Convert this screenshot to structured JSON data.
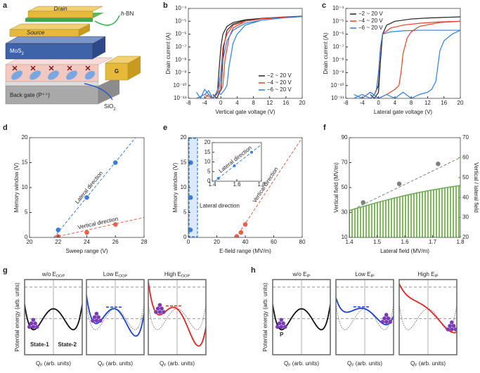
{
  "device": {
    "label": "a",
    "drain": "Drain",
    "hbn": {
      "italic": "h",
      "text": "-BN"
    },
    "source": "Source",
    "channel": {
      "text": "MoS",
      "sub": "2"
    },
    "gate": "G",
    "back_gate": "Back gate (P⁺⁺)",
    "dielectric": {
      "text": "SiO",
      "sub": "2"
    }
  },
  "chart_data": [
    {
      "type": "line",
      "label": "b",
      "log_y": true,
      "x_label": "Vertical gate voltage (V)",
      "y_label": "Drain current (A)",
      "xlim": [
        -8,
        20
      ],
      "xticks": [
        -8,
        -4,
        0,
        4,
        8,
        12,
        16,
        20
      ],
      "ylim": [
        1e-11,
        0.0001
      ],
      "yticks": [
        {
          "value": 1e-11,
          "label": "10⁻¹¹"
        },
        {
          "value": 1e-10,
          "label": "10⁻¹⁰"
        },
        {
          "value": 1e-09,
          "label": "10⁻⁹"
        },
        {
          "value": 1e-08,
          "label": "10⁻⁸"
        },
        {
          "value": 1e-07,
          "label": "10⁻⁷"
        },
        {
          "value": 1e-06,
          "label": "10⁻⁶"
        },
        {
          "value": 1e-05,
          "label": "10⁻⁵"
        },
        {
          "value": 0.0001,
          "label": "10⁻⁴"
        }
      ],
      "legend": "lower right",
      "series": [
        {
          "name": "−2 ~ 20 V",
          "color": "#222222",
          "x": [
            -2,
            -1,
            -0.3,
            0,
            0.3,
            0.7,
            1.5,
            3,
            6,
            10,
            15,
            20,
            15,
            10,
            6,
            3,
            1.5,
            0.5,
            0,
            -0.5,
            -0.8,
            -1.2,
            -2
          ],
          "values": [
            2e-11,
            1e-11,
            3e-11,
            5e-11,
            1e-09,
            1e-07,
            2e-06,
            6e-06,
            1.2e-05,
            1.7e-05,
            2.1e-05,
            2.5e-05,
            2.1e-05,
            1.7e-05,
            1.3e-05,
            8e-06,
            4e-06,
            1e-06,
            1e-07,
            1e-09,
            5e-11,
            2e-11,
            1e-11
          ]
        },
        {
          "name": "−4 ~ 20 V",
          "color": "#e8402f",
          "x": [
            -4,
            -3,
            -2,
            -1,
            0,
            0.5,
            1,
            2,
            3,
            6,
            10,
            15,
            20,
            15,
            10,
            6,
            3,
            1.5,
            0.5,
            0,
            -0.5,
            -1,
            -2,
            -4
          ],
          "values": [
            1e-11,
            2e-11,
            1e-11,
            3e-11,
            4e-11,
            1e-10,
            1e-08,
            5e-07,
            3e-06,
            1e-05,
            1.6e-05,
            2e-05,
            2.4e-05,
            2e-05,
            1.5e-05,
            1e-05,
            5e-06,
            1e-06,
            1e-07,
            1e-09,
            4e-11,
            2e-11,
            1e-11,
            2e-11
          ]
        },
        {
          "name": "−6 ~ 20 V",
          "color": "#2f7fe0",
          "x": [
            -6,
            -5,
            -4,
            -3,
            -2,
            -1,
            0,
            1,
            1.5,
            2,
            3,
            4,
            6,
            10,
            15,
            20,
            15,
            10,
            6,
            3,
            1.5,
            0.5,
            -0.5,
            -1,
            -2,
            -3,
            -4,
            -6
          ],
          "values": [
            3e-11,
            1e-11,
            5e-11,
            2e-11,
            1e-11,
            3e-11,
            2e-11,
            5e-11,
            1e-10,
            3e-09,
            2e-07,
            1e-06,
            5e-06,
            1.2e-05,
            1.8e-05,
            2.3e-05,
            1.8e-05,
            1.2e-05,
            7e-06,
            2e-06,
            3e-07,
            1e-08,
            1e-10,
            3e-11,
            1e-11,
            4e-11,
            2e-11,
            1e-11
          ]
        }
      ]
    },
    {
      "type": "line",
      "label": "c",
      "log_y": true,
      "x_label": "Lateral gate voltage (V)",
      "y_label": "Drain current (A)",
      "xlim": [
        -8,
        20
      ],
      "xticks": [
        -8,
        -4,
        0,
        4,
        8,
        12,
        16,
        20
      ],
      "ylim": [
        1e-11,
        0.0001
      ],
      "yticks": [
        {
          "value": 1e-11,
          "label": "10⁻¹¹"
        },
        {
          "value": 1e-10,
          "label": "10⁻¹⁰"
        },
        {
          "value": 1e-09,
          "label": "10⁻⁹"
        },
        {
          "value": 1e-08,
          "label": "10⁻⁸"
        },
        {
          "value": 1e-07,
          "label": "10⁻⁷"
        },
        {
          "value": 1e-06,
          "label": "10⁻⁶"
        },
        {
          "value": 1e-05,
          "label": "10⁻⁵"
        },
        {
          "value": 0.0001,
          "label": "10⁻⁴"
        }
      ],
      "legend": "upper left",
      "series": [
        {
          "name": "−2 ~ 20 V",
          "color": "#222222",
          "x": [
            -2,
            -1,
            0,
            0.5,
            1,
            2,
            4,
            8,
            12,
            16,
            20,
            16,
            12,
            8,
            4,
            2,
            1,
            0.5,
            0,
            -1,
            -2
          ],
          "values": [
            2e-11,
            1e-11,
            3e-11,
            1e-08,
            1e-06,
            5e-06,
            1e-05,
            1.5e-05,
            1.8e-05,
            2e-05,
            2.2e-05,
            2e-05,
            1.8e-05,
            1.5e-05,
            1e-05,
            5e-06,
            1e-06,
            1e-08,
            1e-10,
            2e-11,
            1e-11
          ]
        },
        {
          "name": "−4 ~ 20 V",
          "color": "#e8402f",
          "x": [
            -4,
            -2,
            0,
            2,
            4,
            5,
            5.5,
            6,
            7,
            8,
            10,
            15,
            20,
            15,
            10,
            6,
            3,
            1,
            0.5,
            0,
            -0.5,
            -1,
            -2,
            -4
          ],
          "values": [
            1e-11,
            3e-11,
            1e-11,
            2e-11,
            5e-11,
            1e-10,
            1e-09,
            3e-08,
            5e-07,
            1.5e-06,
            4e-06,
            8e-06,
            1e-05,
            9e-06,
            7e-06,
            5e-06,
            3e-06,
            1e-06,
            1e-07,
            1e-09,
            5e-11,
            2e-11,
            1e-11,
            2e-11
          ]
        },
        {
          "name": "−6 ~ 20 V",
          "color": "#2f7fe0",
          "x": [
            -6,
            -4,
            -2,
            0,
            2,
            4,
            6,
            8,
            10,
            12,
            13,
            14,
            14.5,
            15,
            16,
            18,
            20,
            15,
            10,
            6,
            3,
            1,
            0.5,
            0,
            -0.5,
            -1,
            -2,
            -4,
            -6
          ],
          "values": [
            2e-11,
            1e-11,
            3e-11,
            1e-11,
            2e-11,
            1e-11,
            3e-11,
            1e-11,
            2e-11,
            3e-11,
            5e-11,
            2e-10,
            3e-09,
            5e-08,
            3e-07,
            1e-06,
            2e-06,
            2e-06,
            2e-06,
            1.8e-06,
            1.5e-06,
            1e-06,
            1e-07,
            1e-09,
            4e-11,
            2e-11,
            1e-11,
            2e-11,
            1e-11
          ]
        }
      ]
    },
    {
      "type": "scatter",
      "label": "d",
      "x_label": "Sweep range (V)",
      "y_label": "Memory window (V)",
      "xlim": [
        20,
        28
      ],
      "xticks": [
        20,
        22,
        24,
        26,
        28
      ],
      "ylim": [
        0,
        20
      ],
      "yticks": [
        0,
        5,
        10,
        15,
        20
      ],
      "series": [
        {
          "name": "Lateral direction",
          "color": "#3a7fd5",
          "x": [
            22,
            24,
            26
          ],
          "values": [
            1.5,
            8,
            15
          ],
          "fit": {
            "x": [
              21.7,
              27.4
            ],
            "values": [
              0,
              20
            ]
          }
        },
        {
          "name": "Vertical direction",
          "color": "#e8604a",
          "x": [
            22,
            24,
            26
          ],
          "values": [
            0.2,
            1,
            2.6
          ],
          "fit": {
            "x": [
              21.7,
              28
            ],
            "values": [
              0,
              4
            ]
          }
        }
      ]
    },
    {
      "type": "scatter",
      "label": "e",
      "x_label": "E-field range (MV/m)",
      "y_label": "Memory window (V)",
      "xlim": [
        0,
        80
      ],
      "xticks": [
        0,
        20,
        40,
        60,
        80
      ],
      "ylim": [
        0,
        20
      ],
      "yticks": [
        0,
        5,
        10,
        15,
        20
      ],
      "series": [
        {
          "name": "Lateral direction",
          "color": "#3a7fd5",
          "x": [
            1.45,
            1.58,
            1.72
          ],
          "values": [
            1.5,
            8,
            15
          ]
        },
        {
          "name": "Vertical direction",
          "color": "#e8604a",
          "x": [
            34,
            37,
            40
          ],
          "values": [
            0.2,
            1,
            2.6
          ],
          "fit": {
            "x": [
              33.5,
              80
            ],
            "values": [
              0,
              20
            ]
          }
        }
      ]
    },
    {
      "type": "scatter",
      "xlim": [
        1.4,
        1.8
      ],
      "xticks": [
        1.4,
        1.6,
        1.8
      ],
      "ylim": [
        0,
        20
      ],
      "yticks": [
        0,
        5,
        10,
        15,
        20
      ],
      "series": [
        {
          "name": "Lateral direction",
          "color": "#3a7fd5",
          "x": [
            1.45,
            1.58,
            1.72
          ],
          "values": [
            1.5,
            8,
            15
          ],
          "fit": {
            "x": [
              1.42,
              1.8
            ],
            "values": [
              0,
              19
            ]
          }
        }
      ]
    },
    {
      "type": "scatter",
      "label": "f",
      "x_label": "Lateral field (MV/m)",
      "y_label": "Vertical field (MV/m)",
      "y2_label": "Vertical / lateral field",
      "y2_color": "#5f9e48",
      "xlim": [
        1.4,
        1.8
      ],
      "xticks": [
        1.4,
        1.5,
        1.6,
        1.7,
        1.8
      ],
      "ylim": [
        10,
        90
      ],
      "yticks": [
        10,
        30,
        50,
        70,
        90
      ],
      "y2lim": [
        20,
        70
      ],
      "y2ticks": [
        20,
        30,
        40,
        50,
        60,
        70
      ],
      "series": [
        {
          "color": "#808080",
          "x": [
            1.45,
            1.58,
            1.72
          ],
          "values": [
            38,
            53,
            69
          ],
          "fit": {
            "x": [
              1.4,
              1.8
            ],
            "values": [
              31,
              74
            ]
          }
        },
        {
          "type": "area",
          "axis": "y2",
          "color": "#6aa84f",
          "x": [
            1.4,
            1.45,
            1.5,
            1.55,
            1.6,
            1.65,
            1.7,
            1.75,
            1.8
          ],
          "values": [
            33.5,
            35.5,
            37.5,
            39.3,
            41,
            42.5,
            43.8,
            45,
            46
          ]
        }
      ]
    }
  ],
  "energy_diagrams": [
    {
      "label": "g",
      "y_label": "Potential energy (arb. units)",
      "state_labels": [
        "State-1",
        "State-2"
      ],
      "panels": [
        {
          "title": {
            "text": "w/o E",
            "sub": "OOP"
          },
          "x_label": {
            "text": "Q",
            "sub": "F",
            "rest": " (arb. units)"
          }
        },
        {
          "title": {
            "text": "Low E",
            "sub": "OOP"
          },
          "x_label": {
            "text": "Q",
            "sub": "F",
            "rest": " (arb. units)"
          }
        },
        {
          "title": {
            "text": "High E",
            "sub": "OOP"
          },
          "x_label": {
            "text": "Q",
            "sub": "F",
            "rest": " (arb. units)"
          }
        }
      ]
    },
    {
      "label": "h",
      "y_label": "Potential energy (arb. units)",
      "polarization_label": "P",
      "panels": [
        {
          "title": {
            "text": "w/o E",
            "sub": "IP"
          },
          "x_label": {
            "text": "Q",
            "sub": "F",
            "rest": " (arb. units)"
          }
        },
        {
          "title": {
            "text": "Low E",
            "sub": "IP"
          },
          "x_label": {
            "text": "Q",
            "sub": "F",
            "rest": " (arb. units)"
          }
        },
        {
          "title": {
            "text": "High E",
            "sub": "IP"
          },
          "x_label": {
            "text": "Q",
            "sub": "F",
            "rest": " (arb. units)"
          }
        }
      ]
    }
  ]
}
